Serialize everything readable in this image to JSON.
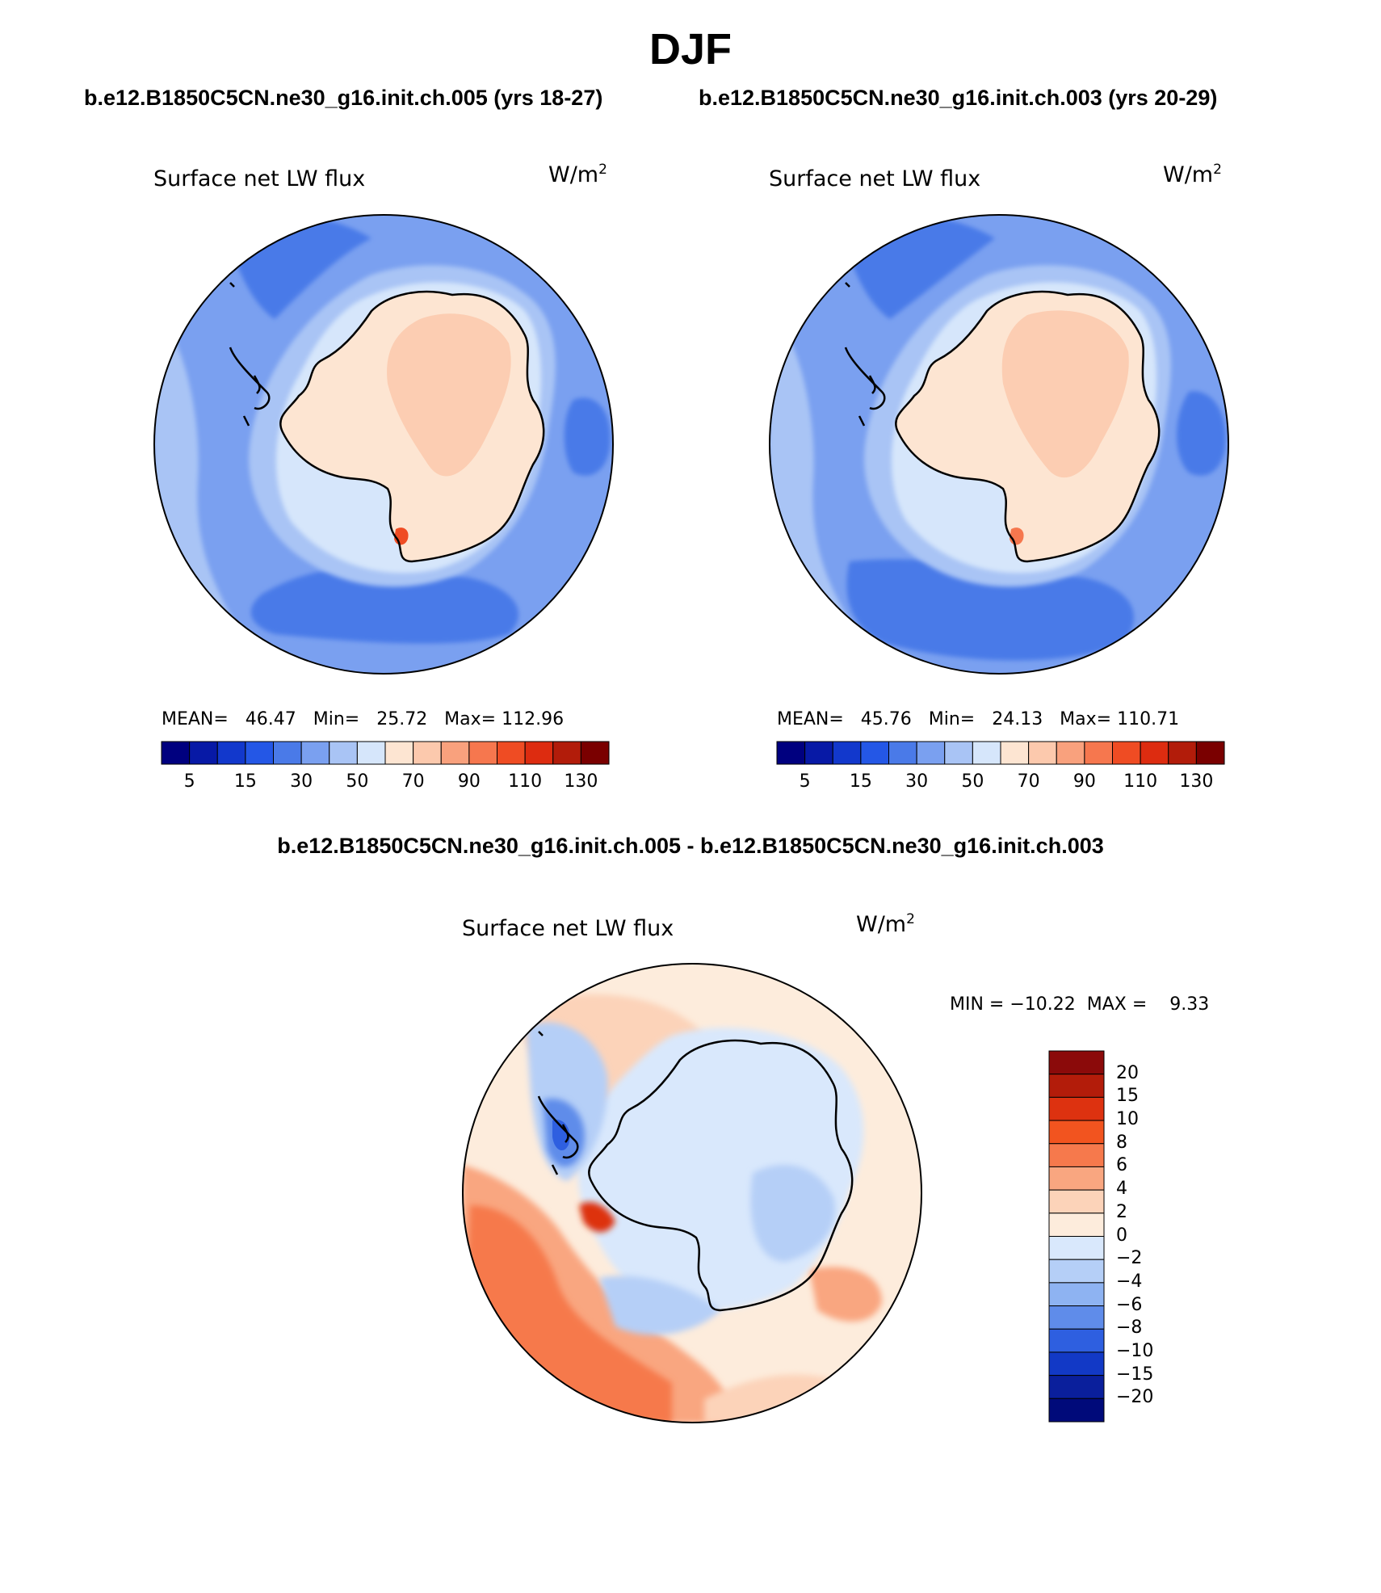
{
  "title": "DJF",
  "case_titles": [
    "b.e12.B1850C5CN.ne30_g16.init.ch.005 (yrs 18-27)",
    "b.e12.B1850C5CN.ne30_g16.init.ch.003 (yrs 20-29)"
  ],
  "diff_title": "b.e12.B1850C5CN.ne30_g16.init.ch.005 - b.e12.B1850C5CN.ne30_g16.init.ch.003",
  "panels": [
    {
      "label": "Surface net LW flux",
      "units_base": "W/m",
      "units_exp": "2",
      "stats": "MEAN=   46.47   Min=   25.72   Max= 112.96"
    },
    {
      "label": "Surface net LW flux",
      "units_base": "W/m",
      "units_exp": "2",
      "stats": "MEAN=   45.76   Min=   24.13   Max= 110.71"
    },
    {
      "label": "Surface net LW flux",
      "units_base": "W/m",
      "units_exp": "2",
      "stats": "MIN = −10.22  MAX =    9.33"
    }
  ],
  "abs_colorbar": {
    "labels": [
      "5",
      "15",
      "30",
      "50",
      "70",
      "90",
      "110",
      "130"
    ],
    "colors": [
      "#00007f",
      "#0719a6",
      "#1238cc",
      "#2457e6",
      "#4a7ae8",
      "#7aa0f0",
      "#a9c4f5",
      "#d6e6fb",
      "#fde5d2",
      "#fcc9ad",
      "#f9a17d",
      "#f6774e",
      "#ef4c23",
      "#dd2c10",
      "#b21c0a",
      "#7a0000"
    ]
  },
  "diff_colorbar": {
    "labels": [
      "20",
      "15",
      "10",
      "8",
      "6",
      "4",
      "2",
      "0",
      "−2",
      "−4",
      "−6",
      "−8",
      "−10",
      "−15",
      "−20"
    ],
    "colors": [
      "#8b0a0a",
      "#b31c0a",
      "#dd3210",
      "#f2541f",
      "#f6794c",
      "#f9a680",
      "#fcd3b9",
      "#fdecdc",
      "#d9e8fc",
      "#b5cff7",
      "#8eb3f2",
      "#5f8cea",
      "#2e5fe0",
      "#1239c6",
      "#0a1f9c",
      "#000a7a"
    ]
  }
}
